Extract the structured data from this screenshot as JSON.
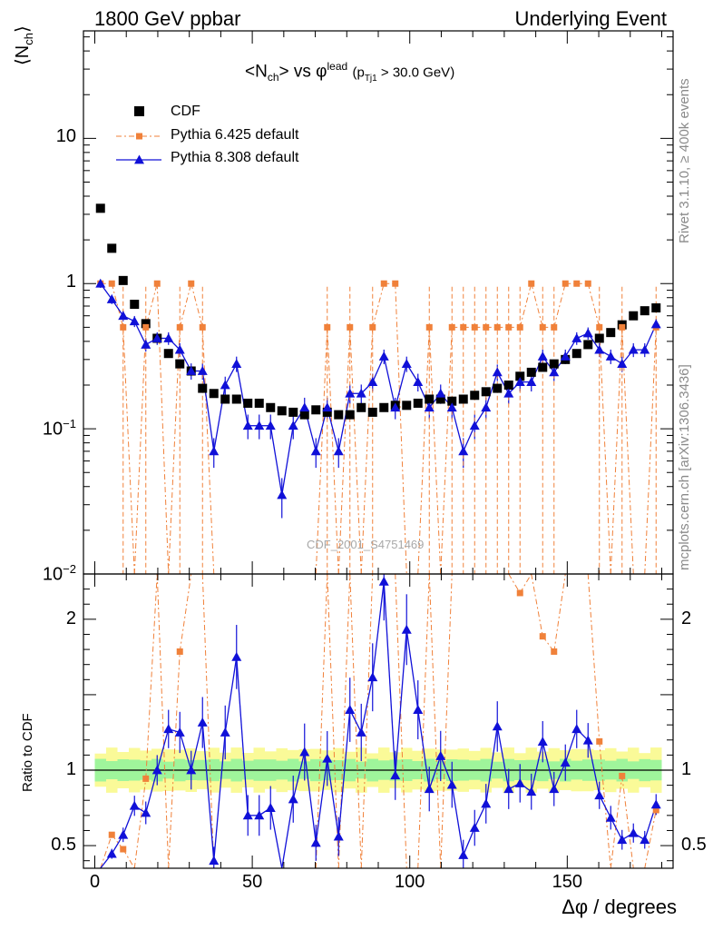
{
  "header": {
    "left": "1800 GeV ppbar",
    "right": "Underlying Event"
  },
  "side_text": {
    "rivet": "Rivet 3.1.10, ≥ 400k events",
    "mcplots": "mcplots.cern.ch [arXiv:1306.3436]"
  },
  "watermark": "CDF_2001_S4751469",
  "chart_data": {
    "type": "scatter",
    "title_parts": {
      "lead": "<N",
      "ch_sub": "ch",
      "mid": "> vs φ",
      "lead_sup": "lead",
      "paren_open": "(p",
      "tj1_sub": "Tj1",
      "cut": " > 30.0 GeV)"
    },
    "ylabel_main": "⟨N",
    "ylabel_main_sub": "ch",
    "ylabel_main_close": "⟩",
    "ylabel_ratio": "Ratio to CDF",
    "xlabel": "Δφ / degrees",
    "xlim": [
      -3.6,
      183.6
    ],
    "main_ylim": [
      0.01,
      55
    ],
    "main_yscale": "log",
    "ratio_ylim": [
      0.35,
      2.3
    ],
    "x_ticks": [
      0,
      50,
      100,
      150
    ],
    "main_y_ticks": [
      {
        "value": 10,
        "label": "10"
      },
      {
        "value": 1,
        "label": "1"
      },
      {
        "value": 0.1,
        "label": "10",
        "exp": "−1"
      },
      {
        "value": 0.01,
        "label": "10",
        "exp": "−2"
      }
    ],
    "ratio_y_ticks": [
      {
        "value": 0.5,
        "label": "0.5"
      },
      {
        "value": 1,
        "label": "1"
      },
      {
        "value": 2,
        "label": "2"
      }
    ],
    "colors": {
      "cdf": "#000000",
      "pythia6": "#f0813a",
      "pythia8": "#1010d8",
      "band_inner": "#9ff59b",
      "band_outer": "#fafa98"
    },
    "legend": [
      "CDF",
      "Pythia 6.425 default",
      "Pythia 8.308 default"
    ],
    "x": [
      1.8,
      5.4,
      9.0,
      12.6,
      16.2,
      19.8,
      23.4,
      27.0,
      30.6,
      34.2,
      37.8,
      41.4,
      45.0,
      48.6,
      52.2,
      55.8,
      59.4,
      63.0,
      66.6,
      70.2,
      73.8,
      77.4,
      81.0,
      84.6,
      88.2,
      91.8,
      95.4,
      99.0,
      102.6,
      106.2,
      109.8,
      113.4,
      117.0,
      120.6,
      124.2,
      127.8,
      131.4,
      135.0,
      138.6,
      142.2,
      145.8,
      149.4,
      153.0,
      156.6,
      160.2,
      163.8,
      167.4,
      171.0,
      174.6,
      178.2
    ],
    "series": [
      {
        "name": "CDF",
        "values": [
          3.3,
          1.75,
          1.05,
          0.72,
          0.53,
          0.42,
          0.33,
          0.28,
          0.25,
          0.19,
          0.175,
          0.16,
          0.16,
          0.15,
          0.15,
          0.14,
          0.133,
          0.13,
          0.125,
          0.135,
          0.13,
          0.125,
          0.125,
          0.14,
          0.13,
          0.14,
          0.145,
          0.145,
          0.15,
          0.16,
          0.16,
          0.155,
          0.16,
          0.17,
          0.18,
          0.19,
          0.2,
          0.23,
          0.245,
          0.265,
          0.28,
          0.3,
          0.33,
          0.38,
          0.42,
          0.46,
          0.52,
          0.6,
          0.65,
          0.68
        ]
      },
      {
        "name": "Pythia 6.425 default",
        "values": [
          1.0,
          1.0,
          0.5,
          null,
          0.5,
          1.0,
          null,
          0.5,
          1.0,
          0.5,
          null,
          null,
          null,
          null,
          null,
          null,
          null,
          null,
          null,
          null,
          0.5,
          null,
          0.5,
          null,
          0.5,
          1.0,
          1.0,
          null,
          null,
          0.5,
          null,
          0.5,
          0.5,
          0.5,
          0.5,
          0.5,
          0.5,
          0.5,
          1.0,
          0.5,
          0.5,
          1.0,
          1.0,
          1.0,
          0.5,
          null,
          0.5,
          null,
          null,
          0.5
        ]
      },
      {
        "name": "Pythia 8.308 default",
        "values": [
          1.0,
          0.78,
          0.6,
          0.55,
          0.38,
          0.42,
          0.42,
          0.35,
          0.25,
          0.25,
          0.07,
          0.2,
          0.28,
          0.105,
          0.105,
          0.105,
          0.035,
          0.105,
          0.14,
          0.07,
          0.14,
          0.07,
          0.175,
          0.175,
          0.21,
          0.315,
          0.14,
          0.28,
          0.21,
          0.14,
          0.175,
          0.14,
          0.07,
          0.105,
          0.14,
          0.245,
          0.175,
          0.21,
          0.21,
          0.315,
          0.245,
          0.315,
          0.42,
          0.455,
          0.35,
          0.315,
          0.28,
          0.35,
          0.35,
          0.525
        ]
      }
    ]
  }
}
